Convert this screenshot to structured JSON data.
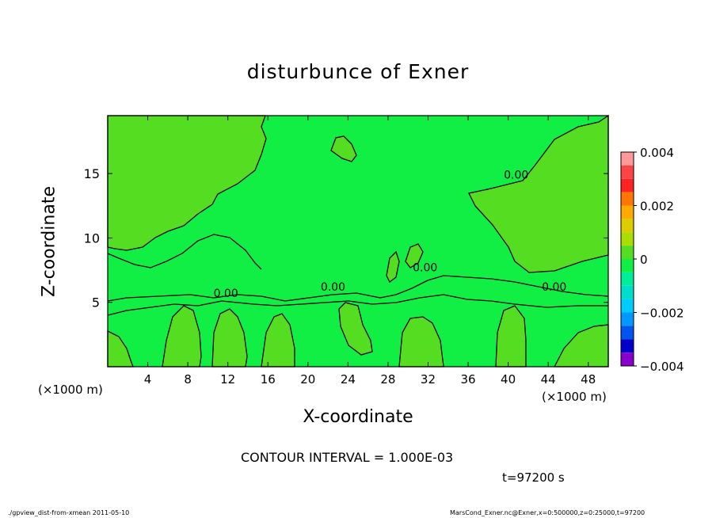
{
  "title": "disturbunce of Exner",
  "footer": {
    "left": "./gpview_dist-from-xmean  2011-05-10",
    "right": "MarsCond_Exner.nc@Exner,x=0:500000,z=0:25000,t=97200"
  },
  "contour_interval": "CONTOUR INTERVAL = 1.000E-03",
  "time_label": "t=97200 s",
  "colors": {
    "field_positive": "#55dd22",
    "field_zero": "#11ee44",
    "contour_line": "#000000"
  },
  "chart_data": {
    "type": "heatmap",
    "title": "disturbunce of Exner",
    "xlabel": "X-coordinate",
    "ylabel": "Z-coordinate",
    "x_unit": "(×1000 m)",
    "xlim": [
      0,
      50
    ],
    "ylim": [
      0,
      19.5
    ],
    "x_ticks": [
      4,
      8,
      12,
      16,
      20,
      24,
      28,
      32,
      36,
      40,
      44,
      48
    ],
    "y_ticks": [
      5,
      10,
      15
    ],
    "contour_labels": [
      {
        "text": "0.00",
        "x": 40.8,
        "y": 14.6
      },
      {
        "text": "0.00",
        "x": 22.5,
        "y": 5.9
      },
      {
        "text": "0.00",
        "x": 11.8,
        "y": 5.4
      },
      {
        "text": "0.00",
        "x": 31.7,
        "y": 7.4
      },
      {
        "text": "0.00",
        "x": 44.6,
        "y": 5.9
      }
    ],
    "colorbar": {
      "ticks": [
        {
          "value": 0.004,
          "label": "0.004"
        },
        {
          "value": 0.002,
          "label": "0.002"
        },
        {
          "value": 0,
          "label": "0"
        },
        {
          "value": -0.002,
          "label": "−0.002"
        },
        {
          "value": -0.004,
          "label": "−0.004"
        }
      ],
      "range": [
        -0.004,
        0.004
      ],
      "levels": [
        {
          "from": 0.0035,
          "to": 0.004,
          "color": "#ff9999"
        },
        {
          "from": 0.003,
          "to": 0.0035,
          "color": "#ff4444"
        },
        {
          "from": 0.0025,
          "to": 0.003,
          "color": "#ff2222"
        },
        {
          "from": 0.002,
          "to": 0.0025,
          "color": "#ff7700"
        },
        {
          "from": 0.0015,
          "to": 0.002,
          "color": "#ffaa00"
        },
        {
          "from": 0.001,
          "to": 0.0015,
          "color": "#ddcc00"
        },
        {
          "from": 0.0005,
          "to": 0.001,
          "color": "#aadd00"
        },
        {
          "from": 0.0,
          "to": 0.0005,
          "color": "#55dd22"
        },
        {
          "from": -0.0005,
          "to": 0.0,
          "color": "#11ee44"
        },
        {
          "from": -0.001,
          "to": -0.0005,
          "color": "#00ee99"
        },
        {
          "from": -0.0015,
          "to": -0.001,
          "color": "#00ddcc"
        },
        {
          "from": -0.002,
          "to": -0.0015,
          "color": "#00ccff"
        },
        {
          "from": -0.0025,
          "to": -0.002,
          "color": "#0099ff"
        },
        {
          "from": -0.003,
          "to": -0.0025,
          "color": "#0055ee"
        },
        {
          "from": -0.0035,
          "to": -0.003,
          "color": "#0000cc"
        },
        {
          "from": -0.004,
          "to": -0.0035,
          "color": "#8800cc"
        }
      ]
    }
  }
}
